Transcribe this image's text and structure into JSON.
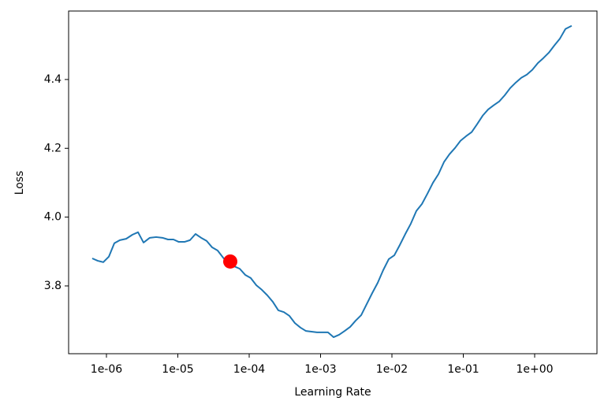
{
  "chart_data": {
    "type": "line",
    "xlabel": "Learning Rate",
    "ylabel": "Loss",
    "xscale": "log",
    "xlim": [
      2.95e-07,
      7.46
    ],
    "ylim": [
      3.603,
      4.599
    ],
    "xticks": [
      {
        "value": 1e-06,
        "label": "1e-06"
      },
      {
        "value": 1e-05,
        "label": "1e-05"
      },
      {
        "value": 0.0001,
        "label": "1e-04"
      },
      {
        "value": 0.001,
        "label": "1e-03"
      },
      {
        "value": 0.01,
        "label": "1e-02"
      },
      {
        "value": 0.1,
        "label": "1e-01"
      },
      {
        "value": 1,
        "label": "1e+00"
      }
    ],
    "yticks": [
      3.8,
      {
        "value": 4,
        "label": "4.0"
      },
      4.2,
      4.4
    ],
    "x": [
      6.32e-07,
      7.56e-07,
      9.03e-07,
      1.08e-06,
      1.29e-06,
      1.54e-06,
      1.89e-06,
      2.32e-06,
      2.77e-06,
      3.31e-06,
      4.05e-06,
      4.97e-06,
      6.09e-06,
      7.28e-06,
      8.69e-06,
      1.03e-05,
      1.24e-05,
      1.48e-05,
      1.77e-05,
      2.12e-05,
      2.53e-05,
      3.03e-05,
      3.61e-05,
      4.32e-05,
      5.16e-05,
      6.17e-05,
      7.36e-05,
      8.81e-05,
      0.000105,
      0.000126,
      0.00015,
      0.000179,
      0.000214,
      0.000256,
      0.000306,
      0.000366,
      0.000437,
      0.000522,
      0.000625,
      0.000746,
      0.000891,
      0.00107,
      0.00127,
      0.00152,
      0.00182,
      0.00217,
      0.0026,
      0.0031,
      0.00371,
      0.00443,
      0.00529,
      0.00632,
      0.00755,
      0.00903,
      0.0108,
      0.0129,
      0.0154,
      0.0184,
      0.022,
      0.0263,
      0.0314,
      0.0376,
      0.0449,
      0.0536,
      0.0641,
      0.0766,
      0.0915,
      0.109,
      0.131,
      0.156,
      0.187,
      0.223,
      0.266,
      0.318,
      0.38,
      0.454,
      0.543,
      0.649,
      0.776,
      0.927,
      1.11,
      1.32,
      1.58,
      1.89,
      2.26,
      2.7,
      3.3
    ],
    "series": [
      {
        "color": "#1f77b4",
        "values": [
          3.88,
          3.873,
          3.869,
          3.885,
          3.924,
          3.933,
          3.937,
          3.949,
          3.956,
          3.926,
          3.94,
          3.942,
          3.94,
          3.935,
          3.935,
          3.928,
          3.928,
          3.933,
          3.951,
          3.94,
          3.931,
          3.912,
          3.903,
          3.882,
          3.866,
          3.857,
          3.85,
          3.832,
          3.823,
          3.802,
          3.789,
          3.773,
          3.754,
          3.729,
          3.724,
          3.713,
          3.692,
          3.679,
          3.669,
          3.667,
          3.665,
          3.665,
          3.665,
          3.651,
          3.658,
          3.669,
          3.681,
          3.699,
          3.715,
          3.747,
          3.779,
          3.809,
          3.846,
          3.878,
          3.889,
          3.919,
          3.951,
          3.981,
          4.018,
          4.038,
          4.068,
          4.1,
          4.125,
          4.16,
          4.183,
          4.201,
          4.222,
          4.235,
          4.247,
          4.27,
          4.295,
          4.313,
          4.325,
          4.336,
          4.354,
          4.375,
          4.391,
          4.405,
          4.414,
          4.428,
          4.448,
          4.462,
          4.478,
          4.499,
          4.519,
          4.547,
          4.556
        ]
      }
    ],
    "suggestion": {
      "x": 5.43e-05,
      "y": 3.871,
      "color": "red"
    }
  }
}
